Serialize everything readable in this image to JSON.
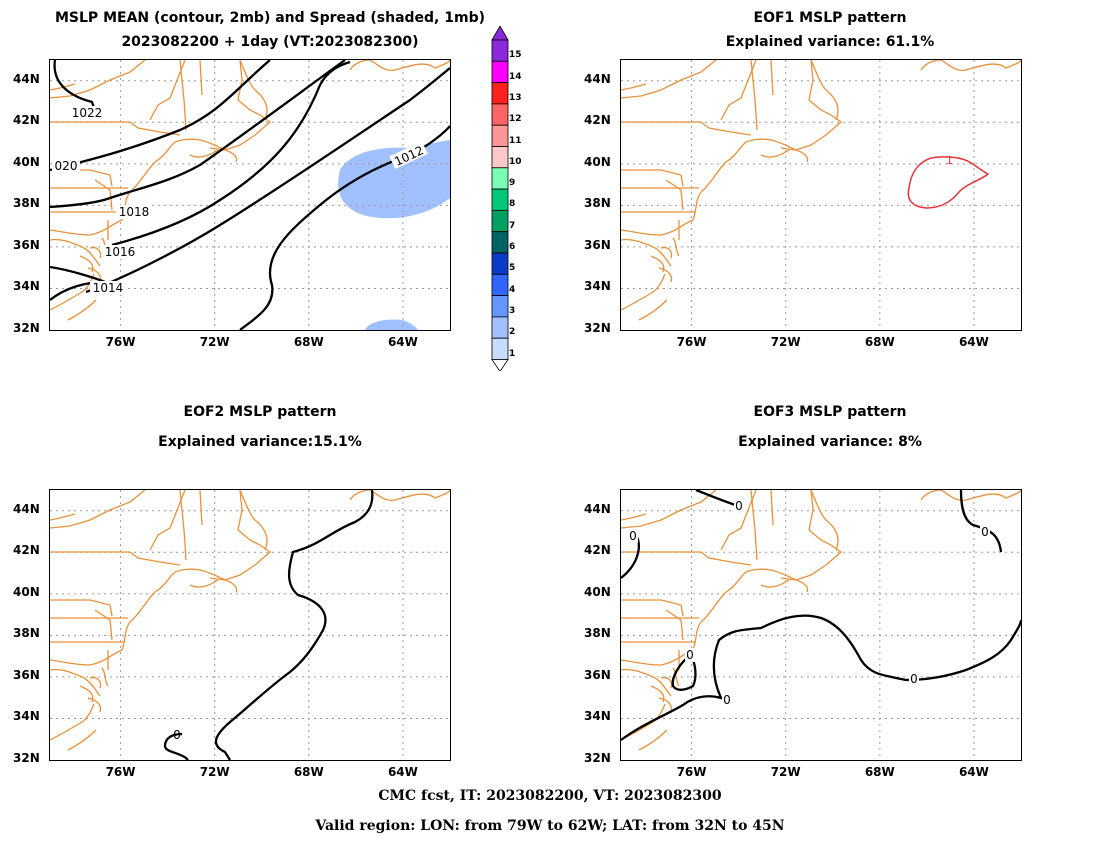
{
  "panels": [
    {
      "id": "mean",
      "title_line1": "MSLP MEAN (contour, 2mb) and Spread (shaded, 1mb)",
      "title_line2": "2023082200 + 1day (VT:2023082300)",
      "contour_labels": [
        "1022",
        "020",
        "1018",
        "1016",
        "1014",
        "1012"
      ]
    },
    {
      "id": "eof1",
      "title_line1": "EOF1 MSLP pattern",
      "title_line2": "Explained variance: 61.1%",
      "contour_labels": [
        "1"
      ]
    },
    {
      "id": "eof2",
      "title_line1": "EOF2 MSLP pattern",
      "title_line2": "Explained variance:15.1%",
      "contour_labels": [
        "0"
      ]
    },
    {
      "id": "eof3",
      "title_line1": "EOF3 MSLP pattern",
      "title_line2": "Explained variance: 8%",
      "contour_labels": [
        "0",
        "0",
        "0",
        "0",
        "0",
        "0"
      ]
    }
  ],
  "axes": {
    "lat_ticks": [
      "44N",
      "42N",
      "40N",
      "38N",
      "36N",
      "34N",
      "32N"
    ],
    "lon_ticks": [
      "76W",
      "72W",
      "68W",
      "64W"
    ]
  },
  "colorbar": {
    "levels": [
      "1",
      "2",
      "3",
      "4",
      "5",
      "6",
      "7",
      "8",
      "9",
      "10",
      "11",
      "12",
      "13",
      "14",
      "15"
    ],
    "colors": [
      "#c8dcff",
      "#a0c0ff",
      "#6496ff",
      "#3264ff",
      "#0a3cc8",
      "#006464",
      "#00a064",
      "#00c878",
      "#78ffb4",
      "#ffc8c8",
      "#ff9696",
      "#ff6464",
      "#ff2020",
      "#ff00ff",
      "#8c28dc"
    ]
  },
  "footer": {
    "line1": "CMC fcst, IT: 2023082200, VT: 2023082300",
    "line2": "Valid region: LON: from 79W to 62W; LAT: from 32N to 45N"
  },
  "colors": {
    "coast": "#e8913a",
    "contour": "#000000",
    "positive_eof": "#e8323c",
    "spread_shade": "#a0c0ff",
    "grid": "#9a9a9a"
  }
}
